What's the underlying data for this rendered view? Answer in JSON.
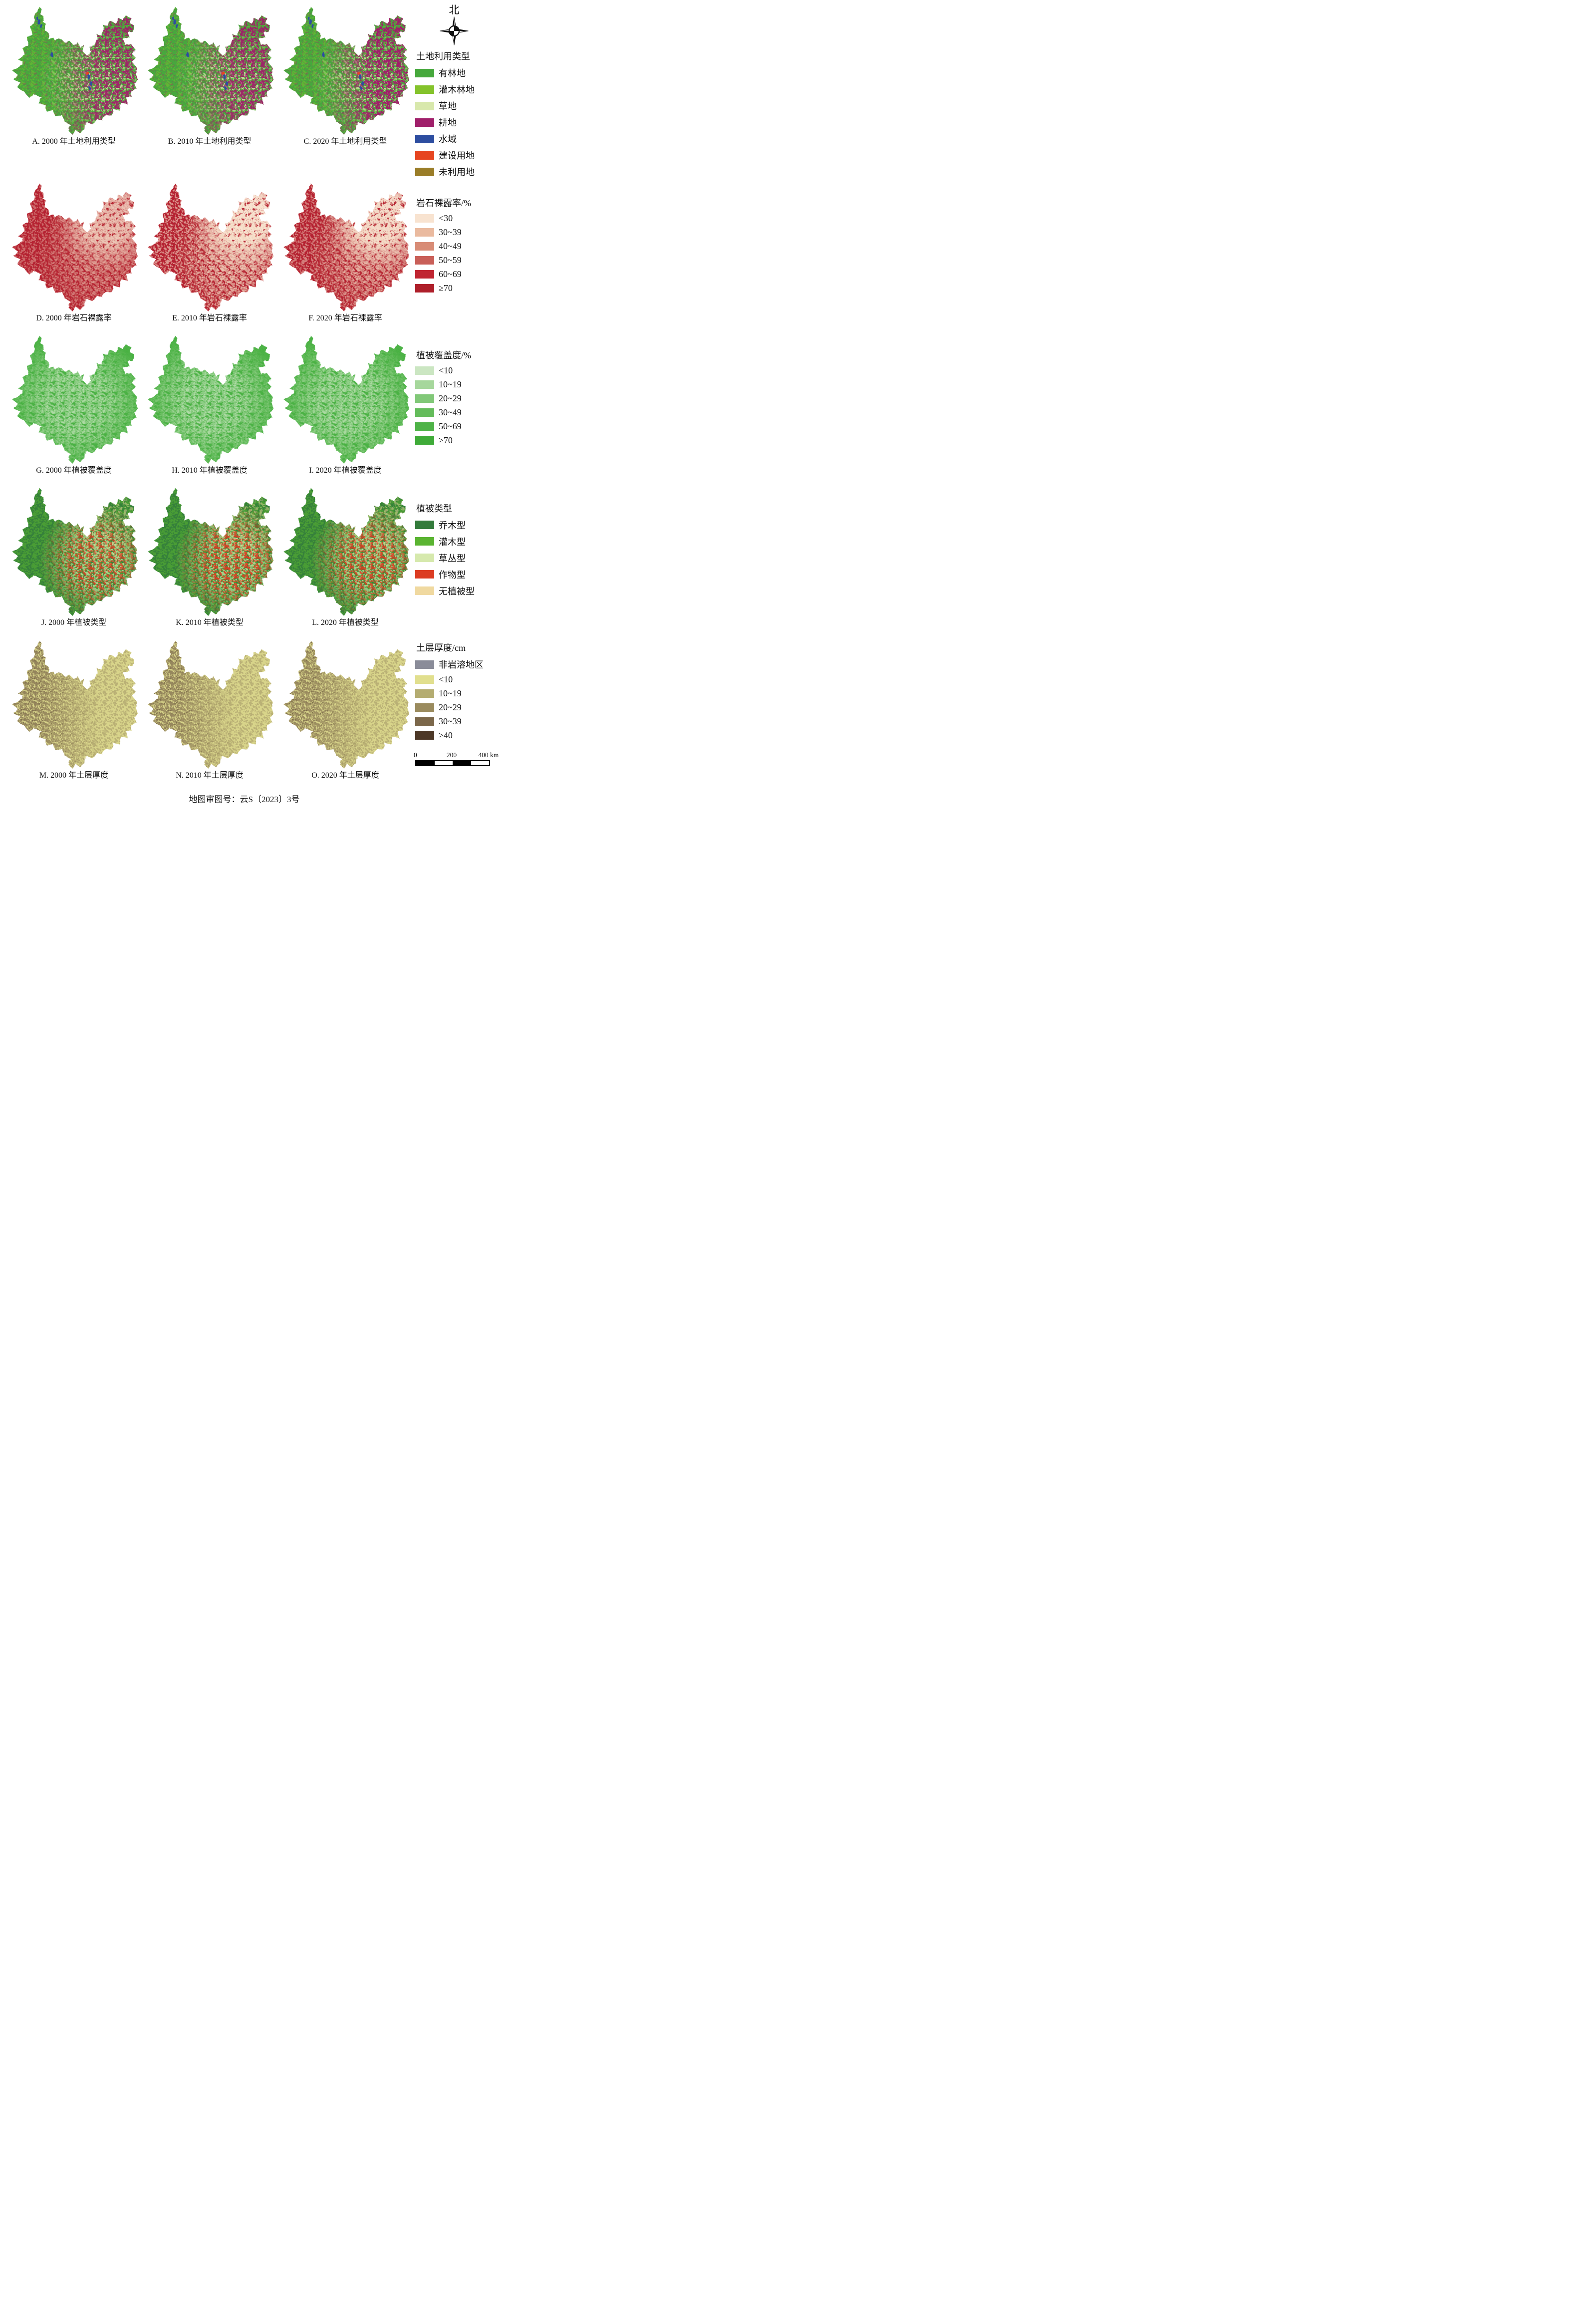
{
  "figure": {
    "north_label": "北",
    "footer_note": "地图审图号：云S〔2023〕3号",
    "scale_bar": {
      "tick_start": "0",
      "tick_mid": "200",
      "tick_end": "400 km"
    }
  },
  "rows": [
    {
      "legend_title": "土地利用类型",
      "captions": [
        "A. 2000 年土地利用类型",
        "B. 2010 年土地利用类型",
        "C. 2020 年土地利用类型"
      ],
      "legend_items": [
        {
          "label": "有林地",
          "color": "#46a83c"
        },
        {
          "label": "灌木林地",
          "color": "#84c32b"
        },
        {
          "label": "草地",
          "color": "#d8e8ac"
        },
        {
          "label": "耕地",
          "color": "#a01f6a"
        },
        {
          "label": "水域",
          "color": "#2d4da0"
        },
        {
          "label": "建设用地",
          "color": "#e64520"
        },
        {
          "label": "未利用地",
          "color": "#9a7d28"
        }
      ],
      "map_style": {
        "base": "#46a83c",
        "column_opacity": [
          1,
          1,
          1.05
        ],
        "layers": [
          {
            "color": "#84c32b",
            "mask": "all",
            "opacity": 0.45,
            "density": 9,
            "size": 0.5
          },
          {
            "color": "#d8e8ac",
            "mask": "SE",
            "opacity": 0.85,
            "density": 8,
            "size": 0.55
          },
          {
            "color": "#a01f6a",
            "mask": "E",
            "opacity": 0.95,
            "density": 10,
            "size": 0.6,
            "vary": true
          },
          {
            "color": "#a01f6a",
            "mask": "all",
            "opacity": 0.33,
            "density": 5,
            "size": 0.45
          }
        ],
        "spots": [
          {
            "color": "#2d4da0",
            "points": [
              [
                23,
                13,
                1.1,
                2.2
              ],
              [
                25,
                16.5,
                0.9,
                1.7
              ],
              [
                21.5,
                10,
                0.8,
                1.4
              ],
              [
                33,
                38,
                0.9,
                1.9
              ],
              [
                38,
                20,
                0.7,
                1.2
              ],
              [
                61,
                55,
                1.1,
                2.1
              ],
              [
                63.5,
                60.5,
                0.9,
                1.6
              ],
              [
                62,
                64,
                0.7,
                1.2
              ]
            ]
          },
          {
            "color": "#e64520",
            "points": [
              [
                60.5,
                52.5,
                1.5,
                1.1
              ]
            ]
          }
        ]
      }
    },
    {
      "legend_title": "岩石裸露率/%",
      "captions": [
        "D. 2000 年岩石裸露率",
        "E. 2010 年岩石裸露率",
        "F. 2020 年岩石裸露率"
      ],
      "legend_items": [
        {
          "label": "<30",
          "color": "#f8e3d0"
        },
        {
          "label": "30~39",
          "color": "#eaba9f"
        },
        {
          "label": "40~49",
          "color": "#d88c76"
        },
        {
          "label": "50~59",
          "color": "#c95f58"
        },
        {
          "label": "60~69",
          "color": "#c02531"
        },
        {
          "label": "≥70",
          "color": "#ae1f2a"
        }
      ],
      "map_style": {
        "base": "#b52430",
        "column_opacity": [
          0.8,
          1.3,
          1.05
        ],
        "layers": [
          {
            "color": "#f8e3d0",
            "mask": "all",
            "opacity": 0.45,
            "density": 9,
            "size": 0.55,
            "vary": true
          },
          {
            "color": "#f8e3d0",
            "mask": "NE",
            "opacity": 0.9,
            "density": 12,
            "size": 0.8,
            "vary": true
          },
          {
            "color": "#f3d9c0",
            "mask": "SE",
            "opacity": 0.5,
            "density": 9,
            "size": 0.7,
            "vary": true
          }
        ],
        "spots": []
      }
    },
    {
      "legend_title": "植被覆盖度/%",
      "captions": [
        "G. 2000 年植被覆盖度",
        "H. 2010 年植被覆盖度",
        "I. 2020 年植被覆盖度"
      ],
      "legend_items": [
        {
          "label": "<10",
          "color": "#cbe6c2"
        },
        {
          "label": "10~19",
          "color": "#a6d79c"
        },
        {
          "label": "20~29",
          "color": "#81c878"
        },
        {
          "label": "30~49",
          "color": "#64bc5b"
        },
        {
          "label": "50~69",
          "color": "#4eb347"
        },
        {
          "label": "≥70",
          "color": "#3fab38"
        }
      ],
      "map_style": {
        "base": "#4eb347",
        "column_opacity": [
          1,
          1.1,
          1
        ],
        "layers": [
          {
            "color": "#a6d79c",
            "mask": "C",
            "opacity": 0.75,
            "density": 10,
            "size": 0.7
          },
          {
            "color": "#cbe6c2",
            "mask": "C",
            "opacity": 0.5,
            "density": 7,
            "size": 0.5,
            "vary": true
          },
          {
            "color": "#3fab38",
            "mask": "all",
            "opacity": 0.3,
            "density": 6,
            "size": 0.5
          }
        ],
        "spots": []
      }
    },
    {
      "legend_title": "植被类型",
      "captions": [
        "J. 2000 年植被类型",
        "K. 2010 年植被类型",
        "L. 2020 年植被类型"
      ],
      "legend_items": [
        {
          "label": "乔木型",
          "color": "#337b3b"
        },
        {
          "label": "灌木型",
          "color": "#5ab431"
        },
        {
          "label": "草丛型",
          "color": "#d6e9ad"
        },
        {
          "label": "作物型",
          "color": "#dc3c22"
        },
        {
          "label": "无植被型",
          "color": "#f0d9a0"
        }
      ],
      "map_style": {
        "base": "#35803a",
        "column_opacity": [
          1,
          1.1,
          1.05
        ],
        "layers": [
          {
            "color": "#5ab431",
            "mask": "all",
            "opacity": 0.55,
            "density": 10,
            "size": 0.6
          },
          {
            "color": "#d6e9ad",
            "mask": "SE",
            "opacity": 0.7,
            "density": 9,
            "size": 0.6
          },
          {
            "color": "#dc3c22",
            "mask": "SE",
            "opacity": 0.85,
            "density": 8,
            "size": 0.55,
            "vary": true
          },
          {
            "color": "#f0d9a0",
            "mask": "NE",
            "opacity": 0.5,
            "density": 6,
            "size": 0.6
          }
        ],
        "spots": []
      }
    },
    {
      "legend_title": "土层厚度/cm",
      "captions": [
        "M. 2000 年土层厚度",
        "N. 2010 年土层厚度",
        "O. 2020 年土层厚度"
      ],
      "legend_items": [
        {
          "label": "非岩溶地区",
          "color": "#8a8c99"
        },
        {
          "label": "<10",
          "color": "#e1df8e"
        },
        {
          "label": "10~19",
          "color": "#b4ac71"
        },
        {
          "label": "20~29",
          "color": "#9a8b5e"
        },
        {
          "label": "30~39",
          "color": "#7b674a"
        },
        {
          "label": "≥40",
          "color": "#4d3827"
        }
      ],
      "map_style": {
        "base": "#d8d48a",
        "column_opacity": [
          1.05,
          1,
          0.95
        ],
        "layers": [
          {
            "color": "#7b674a",
            "mask": "W",
            "opacity": 0.7,
            "density": 11,
            "size": 0.6,
            "vary": true
          },
          {
            "color": "#9a8b5e",
            "mask": "all",
            "opacity": 0.5,
            "density": 9,
            "size": 0.5
          },
          {
            "color": "#4d3827",
            "mask": "W",
            "opacity": 0.4,
            "density": 5,
            "size": 0.4
          }
        ],
        "spots": []
      }
    }
  ]
}
